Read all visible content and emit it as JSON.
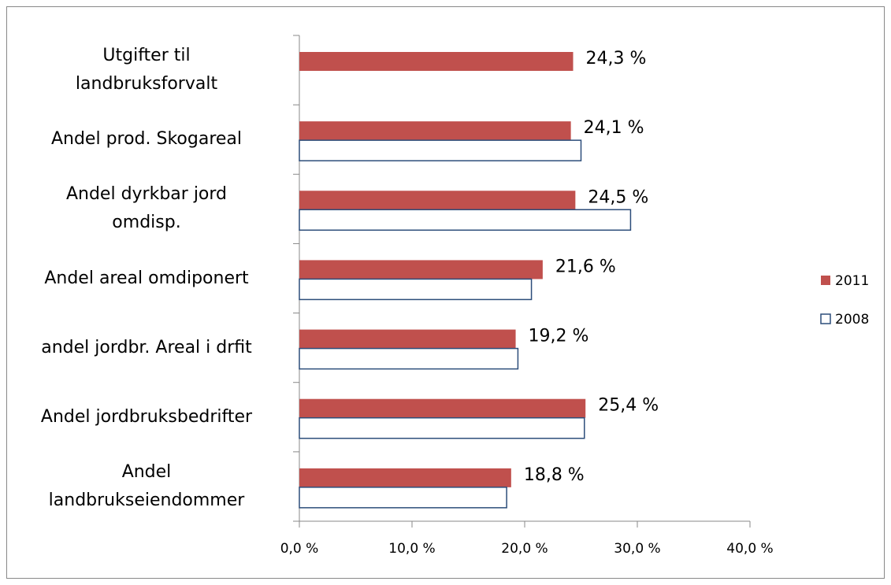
{
  "chart_data": {
    "type": "bar",
    "orientation": "horizontal",
    "categories": [
      "Utgifter til\nlandbruksforvalt",
      "Andel prod. Skogareal",
      "Andel dyrkbar jord\nomdisp.",
      "Andel areal omdiponert",
      "andel jordbr. Areal i drfit",
      "Andel jordbruksbedrifter",
      "Andel\nlandbrukseiendommer"
    ],
    "series": [
      {
        "name": "2011",
        "color": "#c0504d",
        "values": [
          24.3,
          24.1,
          24.5,
          21.6,
          19.2,
          25.4,
          18.8
        ],
        "value_labels": [
          "24,3 %",
          "24,1 %",
          "24,5 %",
          "21,6 %",
          "19,2 %",
          "25,4 %",
          "18,8 %"
        ]
      },
      {
        "name": "2008",
        "color": "#ffffff",
        "edgecolor": "#2c4d7a",
        "values": [
          null,
          25.0,
          29.4,
          20.6,
          19.4,
          25.3,
          18.4
        ]
      }
    ],
    "xlim": [
      0,
      40
    ],
    "xticks": [
      {
        "value": 0,
        "label": "0,0 %"
      },
      {
        "value": 10,
        "label": "10,0 %"
      },
      {
        "value": 20,
        "label": "20,0 %"
      },
      {
        "value": 30,
        "label": "30,0 %"
      },
      {
        "value": 40,
        "label": "40,0 %"
      }
    ],
    "legend": "right"
  }
}
